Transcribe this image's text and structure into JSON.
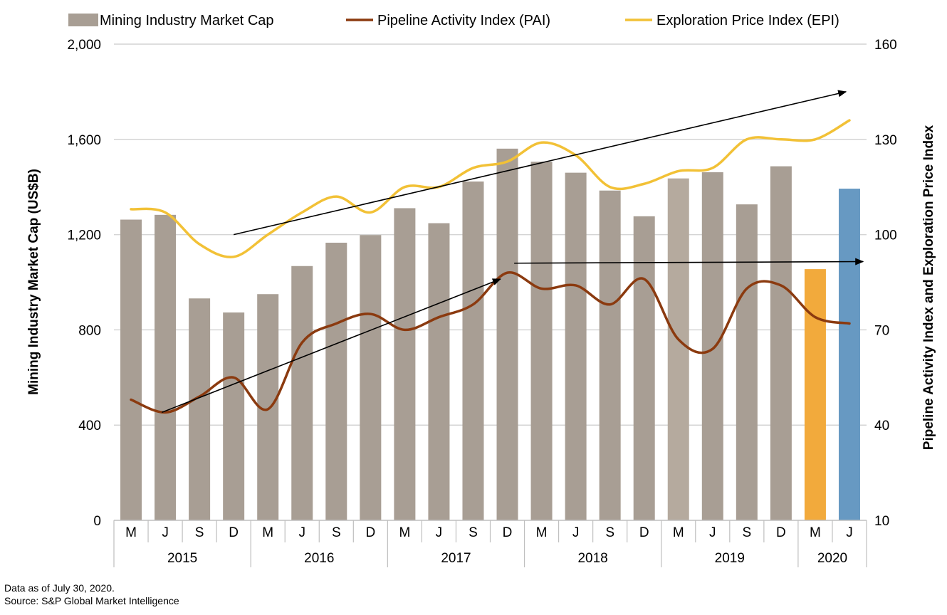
{
  "chart_data": {
    "type": "bar",
    "legend": {
      "placement": "top",
      "entries": [
        {
          "label": "Mining Industry Market Cap",
          "swatch": "bar",
          "color": "#a89e94"
        },
        {
          "label": "Pipeline Activity Index (PAI)",
          "swatch": "line",
          "color": "#8b3a0f"
        },
        {
          "label": "Exploration Price Index (EPI)",
          "swatch": "line",
          "color": "#f2c136"
        }
      ]
    },
    "categories": [
      "M",
      "J",
      "S",
      "D",
      "M",
      "J",
      "S",
      "D",
      "M",
      "J",
      "S",
      "D",
      "M",
      "J",
      "S",
      "D",
      "M",
      "J",
      "S",
      "D",
      "M",
      "J"
    ],
    "years": [
      {
        "label": "2015",
        "span": 4
      },
      {
        "label": "2016",
        "span": 4
      },
      {
        "label": "2017",
        "span": 4
      },
      {
        "label": "2018",
        "span": 4
      },
      {
        "label": "2019",
        "span": 4
      },
      {
        "label": "2020",
        "span": 2
      }
    ],
    "ylabel": "Mining Industry Market Cap (US$B)",
    "y2label": "Pipeline Activity Index and Exploration Price Index",
    "ylim": [
      0,
      2000
    ],
    "yticks": [
      0,
      400,
      800,
      1200,
      1600,
      2000
    ],
    "ytick_labels": [
      "0",
      "400",
      "800",
      "1,200",
      "1,600",
      "2,000"
    ],
    "y2lim": [
      10,
      160
    ],
    "y2ticks": [
      10,
      40,
      70,
      100,
      130,
      160
    ],
    "y2tick_labels": [
      "10",
      "40",
      "70",
      "100",
      "130",
      "160"
    ],
    "grid": true,
    "series": [
      {
        "name": "Mining Industry Market Cap",
        "kind": "bar",
        "axis": "left",
        "values": [
          1263,
          1283,
          932,
          873,
          950,
          1068,
          1166,
          1198,
          1311,
          1248,
          1423,
          1561,
          1506,
          1460,
          1385,
          1277,
          1436,
          1462,
          1327,
          1487,
          1055,
          1393
        ],
        "colors": [
          "#a89e94",
          "#a89e94",
          "#a89e94",
          "#a89e94",
          "#a89e94",
          "#a89e94",
          "#a89e94",
          "#a89e94",
          "#a89e94",
          "#a89e94",
          "#a89e94",
          "#a89e94",
          "#a89e94",
          "#a89e94",
          "#a89e94",
          "#a89e94",
          "#b5aa9e",
          "#a89e94",
          "#a89e94",
          "#a89e94",
          "#f2aa3c",
          "#6799c2"
        ]
      },
      {
        "name": "Pipeline Activity Index (PAI)",
        "kind": "line",
        "axis": "right",
        "color": "#8b3a0f",
        "values": [
          48,
          44,
          49,
          55,
          45,
          66,
          72,
          75,
          70,
          74,
          78,
          88,
          83,
          84,
          78,
          86,
          67,
          64,
          83,
          84,
          74,
          72
        ]
      },
      {
        "name": "Exploration Price Index (EPI)",
        "kind": "line",
        "axis": "right",
        "color": "#f2c136",
        "values": [
          108,
          107,
          97,
          93,
          100,
          107,
          112,
          107,
          115,
          115,
          121,
          123,
          129,
          125,
          115,
          116,
          120,
          121,
          130,
          130,
          130,
          136
        ]
      }
    ],
    "annotations": [
      {
        "type": "arrow",
        "from": {
          "category_index": 3,
          "y2": 100
        },
        "to": {
          "category_index": 20.9,
          "y2": 145
        }
      },
      {
        "type": "arrow",
        "from": {
          "category_index": 0.9,
          "y2": 44
        },
        "to": {
          "category_index": 10.8,
          "y2": 86
        }
      },
      {
        "type": "arrow",
        "from": {
          "category_index": 11.2,
          "y2": 91
        },
        "to": {
          "category_index": 21.4,
          "y2": 91.5
        }
      }
    ]
  },
  "footnotes": {
    "data_date": "Data as of July 30, 2020.",
    "source": "Source: S&P Global Market Intelligence"
  }
}
